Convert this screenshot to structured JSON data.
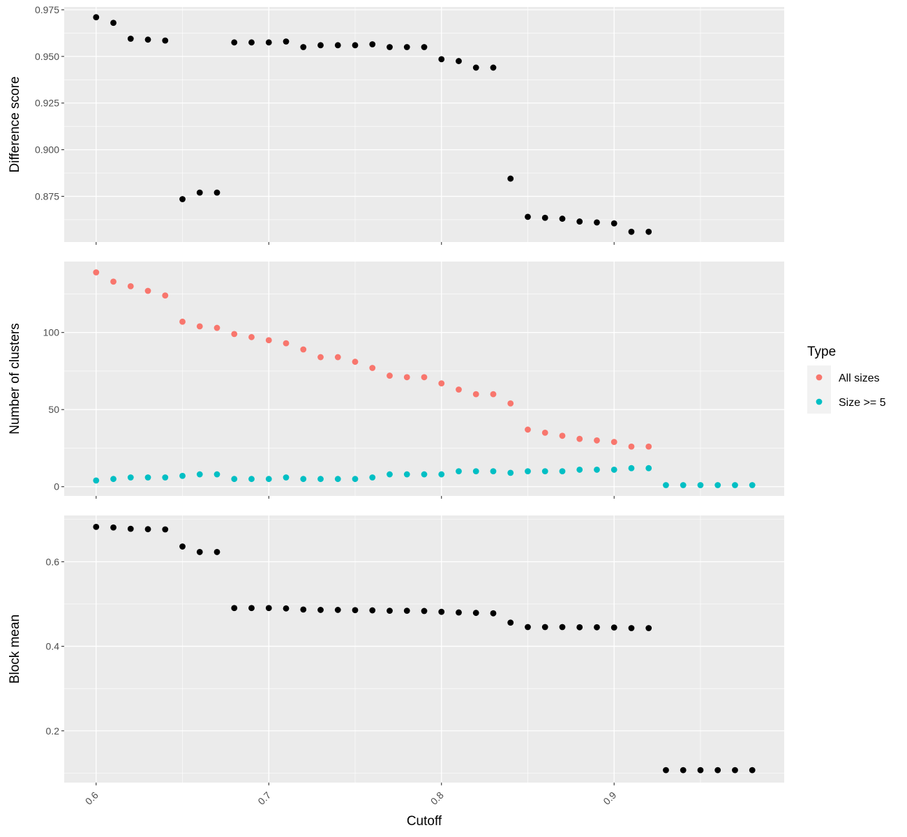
{
  "chart_data": {
    "type": "scatter",
    "xlabel": "Cutoff",
    "x_tick_labels": [
      "0.6",
      "0.7",
      "0.8",
      "0.9"
    ],
    "legend": {
      "title": "Type",
      "placement": "right",
      "entries": [
        {
          "name": "All sizes",
          "color": "#F8766D"
        },
        {
          "name": "Size >= 5",
          "color": "#00BFC4"
        }
      ]
    },
    "panels": [
      {
        "id": "difference",
        "ylabel": "Difference score",
        "ylim": [
          0.8505,
          0.9765
        ],
        "y_ticks": [
          "0.875",
          "0.900",
          "0.925",
          "0.950",
          "0.975"
        ],
        "series": [
          {
            "color": "#000000",
            "x": [
              0.6,
              0.61,
              0.62,
              0.63,
              0.64,
              0.65,
              0.66,
              0.67,
              0.68,
              0.69,
              0.7,
              0.71,
              0.72,
              0.73,
              0.74,
              0.75,
              0.76,
              0.77,
              0.78,
              0.79,
              0.8,
              0.81,
              0.82,
              0.83,
              0.84,
              0.85,
              0.86,
              0.87,
              0.88,
              0.89,
              0.9,
              0.91,
              0.92
            ],
            "y": [
              0.971,
              0.968,
              0.9595,
              0.959,
              0.9585,
              0.8735,
              0.877,
              0.877,
              0.9575,
              0.9575,
              0.9575,
              0.958,
              0.955,
              0.956,
              0.956,
              0.956,
              0.9565,
              0.955,
              0.955,
              0.955,
              0.9485,
              0.9475,
              0.944,
              0.944,
              0.8845,
              0.864,
              0.8635,
              0.863,
              0.8615,
              0.861,
              0.8605,
              0.856,
              0.856
            ]
          }
        ]
      },
      {
        "id": "clusters",
        "ylabel": "Number of clusters",
        "ylim": [
          -6,
          146
        ],
        "y_ticks": [
          "0",
          "50",
          "100"
        ],
        "series": [
          {
            "name": "All sizes",
            "color": "#F8766D",
            "x": [
              0.6,
              0.61,
              0.62,
              0.63,
              0.64,
              0.65,
              0.66,
              0.67,
              0.68,
              0.69,
              0.7,
              0.71,
              0.72,
              0.73,
              0.74,
              0.75,
              0.76,
              0.77,
              0.78,
              0.79,
              0.8,
              0.81,
              0.82,
              0.83,
              0.84,
              0.85,
              0.86,
              0.87,
              0.88,
              0.89,
              0.9,
              0.91,
              0.92
            ],
            "y": [
              139,
              133,
              130,
              127,
              124,
              107,
              104,
              103,
              99,
              97,
              95,
              93,
              89,
              84,
              84,
              81,
              77,
              72,
              71,
              71,
              67,
              63,
              60,
              60,
              54,
              37,
              35,
              33,
              31,
              30,
              29,
              26,
              26
            ]
          },
          {
            "name": "Size >= 5",
            "color": "#00BFC4",
            "x": [
              0.6,
              0.61,
              0.62,
              0.63,
              0.64,
              0.65,
              0.66,
              0.67,
              0.68,
              0.69,
              0.7,
              0.71,
              0.72,
              0.73,
              0.74,
              0.75,
              0.76,
              0.77,
              0.78,
              0.79,
              0.8,
              0.81,
              0.82,
              0.83,
              0.84,
              0.85,
              0.86,
              0.87,
              0.88,
              0.89,
              0.9,
              0.91,
              0.92,
              0.93,
              0.94,
              0.95,
              0.96,
              0.97,
              0.98
            ],
            "y": [
              4,
              5,
              6,
              6,
              6,
              7,
              8,
              8,
              5,
              5,
              5,
              6,
              5,
              5,
              5,
              5,
              6,
              8,
              8,
              8,
              8,
              10,
              10,
              10,
              9,
              10,
              10,
              10,
              11,
              11,
              11,
              12,
              12,
              1,
              1,
              1,
              1,
              1,
              1
            ]
          }
        ]
      },
      {
        "id": "block",
        "ylabel": "Block mean",
        "ylim": [
          0.0775,
          0.7095
        ],
        "y_ticks": [
          "0.2",
          "0.4",
          "0.6"
        ],
        "series": [
          {
            "color": "#000000",
            "x": [
              0.6,
              0.61,
              0.62,
              0.63,
              0.64,
              0.65,
              0.66,
              0.67,
              0.68,
              0.69,
              0.7,
              0.71,
              0.72,
              0.73,
              0.74,
              0.75,
              0.76,
              0.77,
              0.78,
              0.79,
              0.8,
              0.81,
              0.82,
              0.83,
              0.84,
              0.85,
              0.86,
              0.87,
              0.88,
              0.89,
              0.9,
              0.91,
              0.92,
              0.93,
              0.94,
              0.95,
              0.96,
              0.97,
              0.98
            ],
            "y": [
              0.6825,
              0.681,
              0.678,
              0.677,
              0.6765,
              0.636,
              0.623,
              0.623,
              0.4905,
              0.4905,
              0.4905,
              0.4895,
              0.487,
              0.486,
              0.486,
              0.4855,
              0.485,
              0.484,
              0.484,
              0.4835,
              0.4815,
              0.48,
              0.479,
              0.478,
              0.456,
              0.4455,
              0.4455,
              0.4455,
              0.445,
              0.445,
              0.4445,
              0.443,
              0.443,
              0.107,
              0.107,
              0.107,
              0.107,
              0.107,
              0.107
            ]
          }
        ]
      }
    ]
  }
}
